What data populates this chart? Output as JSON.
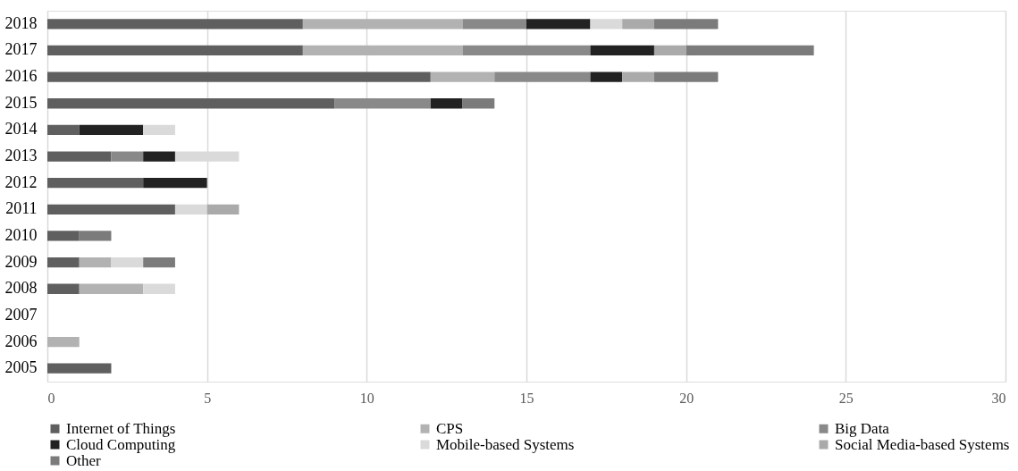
{
  "chart_data": {
    "type": "bar",
    "orientation": "horizontal",
    "stacked": true,
    "categories": [
      "2018",
      "2017",
      "2016",
      "2015",
      "2014",
      "2013",
      "2012",
      "2011",
      "2010",
      "2009",
      "2008",
      "2007",
      "2006",
      "2005"
    ],
    "series": [
      {
        "name": "Internet of Things",
        "color": "#5f5f5f",
        "values": [
          8,
          8,
          12,
          9,
          1,
          2,
          3,
          4,
          1,
          1,
          1,
          null,
          null,
          2
        ]
      },
      {
        "name": "CPS",
        "color": "#b2b2b2",
        "values": [
          5,
          5,
          2,
          null,
          null,
          null,
          null,
          null,
          null,
          1,
          2,
          null,
          1,
          null
        ]
      },
      {
        "name": "Big Data",
        "color": "#898989",
        "values": [
          2,
          4,
          3,
          3,
          null,
          1,
          null,
          null,
          null,
          null,
          null,
          null,
          null,
          null
        ]
      },
      {
        "name": "Cloud Computing",
        "color": "#222222",
        "values": [
          2,
          2,
          1,
          1,
          2,
          1,
          2,
          null,
          null,
          null,
          null,
          null,
          null,
          null
        ]
      },
      {
        "name": "Mobile-based Systems",
        "color": "#dadada",
        "values": [
          1,
          null,
          null,
          null,
          1,
          2,
          null,
          1,
          null,
          1,
          1,
          null,
          null,
          null
        ]
      },
      {
        "name": "Social Media-based Systems",
        "color": "#aaaaaa",
        "values": [
          1,
          1,
          1,
          null,
          null,
          null,
          null,
          1,
          null,
          null,
          null,
          null,
          null,
          null
        ]
      },
      {
        "name": "Other",
        "color": "#7b7b7b",
        "values": [
          2,
          4,
          2,
          1,
          null,
          null,
          null,
          null,
          1,
          1,
          null,
          null,
          null,
          null
        ]
      }
    ],
    "xlim": [
      0,
      30
    ],
    "xticks": [
      0,
      5,
      10,
      15,
      20,
      25,
      30
    ],
    "grid": "x",
    "legend": "bottom"
  }
}
